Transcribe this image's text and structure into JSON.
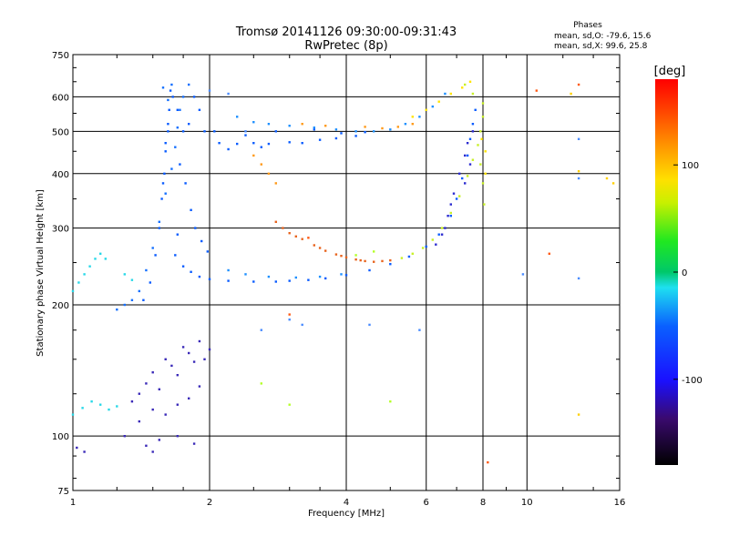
{
  "chart_data": {
    "type": "scatter",
    "title": "Tromsø 20141126 09:30:00-09:31:43",
    "subtitle": "RwPretec (8p)",
    "info": {
      "heading": "Phases",
      "line1": "mean, sd,O: -79.6, 15.6",
      "line2": "mean, sd,X:  99.6, 25.8"
    },
    "xlabel": "Frequency [MHz]",
    "ylabel": "Stationary phase Virtual Height [km]",
    "x_scale": "log",
    "y_scale": "log",
    "xlim": [
      1,
      16
    ],
    "ylim": [
      75,
      750
    ],
    "x_ticks": [
      "1",
      "2",
      "4",
      "6",
      "8",
      "10",
      "16"
    ],
    "x_tick_values": [
      1,
      2,
      4,
      6,
      8,
      10,
      16
    ],
    "y_ticks": [
      "75",
      "100",
      "200",
      "300",
      "400",
      "500",
      "600",
      "750"
    ],
    "y_tick_values": [
      75,
      100,
      200,
      300,
      400,
      500,
      600,
      750
    ],
    "grid": true,
    "colorbar": {
      "label": "[deg]",
      "range": [
        -180,
        180
      ],
      "ticks": [
        "100",
        "0",
        "-100"
      ],
      "tick_values": [
        100,
        0,
        -100
      ]
    },
    "series": [
      {
        "color": "#0a5cff",
        "phase": -90,
        "points": [
          [
            1.43,
            205
          ],
          [
            1.48,
            225
          ],
          [
            1.52,
            260
          ],
          [
            1.55,
            300
          ],
          [
            1.57,
            350
          ],
          [
            1.59,
            400
          ],
          [
            1.6,
            450
          ],
          [
            1.62,
            500
          ],
          [
            1.63,
            560
          ],
          [
            1.64,
            620
          ],
          [
            1.6,
            470
          ],
          [
            1.58,
            380
          ],
          [
            1.62,
            520
          ],
          [
            1.66,
            600
          ],
          [
            1.7,
            560
          ],
          [
            1.75,
            500
          ],
          [
            1.8,
            520
          ],
          [
            1.85,
            600
          ],
          [
            1.9,
            560
          ],
          [
            1.95,
            500
          ],
          [
            1.72,
            420
          ],
          [
            1.77,
            380
          ],
          [
            1.82,
            330
          ],
          [
            1.86,
            300
          ],
          [
            1.92,
            280
          ],
          [
            1.98,
            265
          ],
          [
            1.7,
            290
          ],
          [
            1.68,
            260
          ],
          [
            1.75,
            245
          ],
          [
            1.82,
            238
          ],
          [
            1.9,
            232
          ],
          [
            2.0,
            229
          ],
          [
            2.2,
            227
          ],
          [
            2.5,
            226
          ],
          [
            2.8,
            226
          ],
          [
            3.0,
            227
          ],
          [
            3.3,
            228
          ],
          [
            3.6,
            230
          ],
          [
            4.0,
            234
          ],
          [
            4.5,
            240
          ],
          [
            5.0,
            248
          ],
          [
            5.5,
            258
          ],
          [
            6.0,
            272
          ],
          [
            6.4,
            290
          ],
          [
            6.8,
            320
          ],
          [
            7.0,
            350
          ],
          [
            7.2,
            390
          ],
          [
            7.4,
            440
          ],
          [
            7.5,
            480
          ],
          [
            7.6,
            520
          ],
          [
            7.7,
            560
          ],
          [
            2.1,
            470
          ],
          [
            2.3,
            468
          ],
          [
            2.5,
            470
          ],
          [
            2.7,
            468
          ],
          [
            3.0,
            472
          ],
          [
            3.2,
            470
          ],
          [
            3.5,
            478
          ],
          [
            3.8,
            482
          ],
          [
            4.2,
            488
          ],
          [
            2.05,
            500
          ],
          [
            2.4,
            490
          ],
          [
            2.8,
            500
          ],
          [
            3.4,
            505
          ],
          [
            3.9,
            495
          ],
          [
            4.4,
            498
          ],
          [
            2.2,
            455
          ],
          [
            2.6,
            460
          ]
        ]
      },
      {
        "color": "#1e90ff",
        "phase": -60,
        "points": [
          [
            2.3,
            540
          ],
          [
            2.5,
            525
          ],
          [
            2.7,
            520
          ],
          [
            3.0,
            515
          ],
          [
            3.4,
            510
          ],
          [
            3.8,
            505
          ],
          [
            4.2,
            500
          ],
          [
            4.6,
            500
          ],
          [
            5.0,
            505
          ],
          [
            5.4,
            520
          ],
          [
            5.8,
            540
          ],
          [
            6.2,
            570
          ],
          [
            6.6,
            610
          ],
          [
            2.2,
            240
          ],
          [
            2.4,
            235
          ],
          [
            2.7,
            232
          ],
          [
            3.1,
            231
          ],
          [
            3.5,
            232
          ],
          [
            3.9,
            235
          ]
        ]
      },
      {
        "color": "#2c2cd0",
        "phase": -120,
        "points": [
          [
            6.5,
            290
          ],
          [
            6.7,
            320
          ],
          [
            6.9,
            360
          ],
          [
            7.1,
            400
          ],
          [
            7.3,
            440
          ],
          [
            7.4,
            470
          ],
          [
            7.6,
            500
          ],
          [
            7.5,
            420
          ],
          [
            7.3,
            380
          ],
          [
            6.8,
            340
          ],
          [
            6.6,
            300
          ],
          [
            6.3,
            275
          ]
        ]
      },
      {
        "color": "#e8641e",
        "phase": 130,
        "points": [
          [
            2.8,
            310
          ],
          [
            2.9,
            300
          ],
          [
            3.0,
            292
          ],
          [
            3.2,
            283
          ],
          [
            3.4,
            274
          ],
          [
            3.6,
            266
          ],
          [
            3.8,
            261
          ],
          [
            4.0,
            257
          ],
          [
            4.2,
            254
          ],
          [
            4.4,
            252
          ],
          [
            4.6,
            251
          ],
          [
            4.8,
            252
          ],
          [
            5.0,
            253
          ],
          [
            3.1,
            287
          ],
          [
            3.5,
            270
          ],
          [
            3.9,
            259
          ],
          [
            4.3,
            253
          ]
        ]
      },
      {
        "color": "#ff9a1a",
        "phase": 110,
        "points": [
          [
            2.5,
            440
          ],
          [
            2.6,
            420
          ],
          [
            2.7,
            400
          ],
          [
            2.8,
            380
          ],
          [
            3.2,
            520
          ],
          [
            3.6,
            515
          ],
          [
            4.4,
            512
          ],
          [
            4.8,
            508
          ],
          [
            5.2,
            512
          ],
          [
            5.6,
            520
          ]
        ]
      },
      {
        "color": "#c8f028",
        "phase": 70,
        "points": [
          [
            5.3,
            256
          ],
          [
            5.6,
            262
          ],
          [
            5.9,
            270
          ],
          [
            6.2,
            282
          ],
          [
            6.5,
            300
          ],
          [
            6.8,
            325
          ],
          [
            7.1,
            355
          ],
          [
            7.4,
            395
          ],
          [
            7.6,
            430
          ],
          [
            7.8,
            465
          ],
          [
            7.9,
            500
          ],
          [
            8.0,
            540
          ],
          [
            8.0,
            580
          ],
          [
            7.9,
            420
          ],
          [
            8.0,
            380
          ],
          [
            8.05,
            340
          ],
          [
            7.6,
            610
          ],
          [
            7.3,
            640
          ]
        ]
      },
      {
        "color": "#ffe400",
        "phase": 90,
        "points": [
          [
            5.6,
            540
          ],
          [
            6.0,
            560
          ],
          [
            6.4,
            585
          ],
          [
            6.8,
            610
          ],
          [
            7.2,
            630
          ],
          [
            7.5,
            650
          ],
          [
            8.1,
            450
          ],
          [
            8.1,
            400
          ],
          [
            7.95,
            480
          ]
        ]
      },
      {
        "color": "#28d8e8",
        "phase": -10,
        "points": [
          [
            1.0,
            215
          ],
          [
            1.03,
            225
          ],
          [
            1.06,
            235
          ],
          [
            1.09,
            245
          ],
          [
            1.12,
            255
          ],
          [
            1.15,
            262
          ],
          [
            1.18,
            255
          ],
          [
            1.3,
            235
          ],
          [
            1.35,
            228
          ],
          [
            1.0,
            112
          ],
          [
            1.05,
            116
          ],
          [
            1.1,
            120
          ],
          [
            1.15,
            118
          ],
          [
            1.2,
            115
          ],
          [
            1.25,
            117
          ]
        ]
      },
      {
        "color": "#3a2ab8",
        "phase": -140,
        "points": [
          [
            1.35,
            120
          ],
          [
            1.4,
            125
          ],
          [
            1.45,
            132
          ],
          [
            1.5,
            140
          ],
          [
            1.55,
            128
          ],
          [
            1.6,
            150
          ],
          [
            1.65,
            145
          ],
          [
            1.7,
            138
          ],
          [
            1.75,
            160
          ],
          [
            1.8,
            155
          ],
          [
            1.85,
            148
          ],
          [
            1.9,
            165
          ],
          [
            1.95,
            150
          ],
          [
            2.0,
            158
          ],
          [
            1.5,
            115
          ],
          [
            1.6,
            112
          ],
          [
            1.7,
            118
          ],
          [
            1.8,
            122
          ],
          [
            1.9,
            130
          ],
          [
            1.45,
            95
          ],
          [
            1.5,
            92
          ],
          [
            1.55,
            98
          ],
          [
            1.7,
            100
          ],
          [
            1.85,
            96
          ],
          [
            1.3,
            100
          ],
          [
            1.4,
            108
          ],
          [
            1.02,
            94
          ],
          [
            1.06,
            92
          ]
        ]
      },
      {
        "color": "#1570ff",
        "phase": -75,
        "points": [
          [
            1.25,
            195
          ],
          [
            1.3,
            200
          ],
          [
            1.35,
            205
          ],
          [
            1.4,
            215
          ],
          [
            1.45,
            240
          ],
          [
            1.5,
            270
          ],
          [
            1.55,
            310
          ],
          [
            1.6,
            360
          ],
          [
            1.65,
            410
          ],
          [
            1.68,
            460
          ],
          [
            1.7,
            510
          ],
          [
            1.72,
            560
          ],
          [
            1.75,
            600
          ],
          [
            1.8,
            640
          ],
          [
            1.65,
            640
          ],
          [
            1.58,
            630
          ],
          [
            1.62,
            590
          ]
        ]
      },
      {
        "color": "#ff5a14",
        "phase": 150,
        "points": [
          [
            3.0,
            190
          ],
          [
            3.3,
            285
          ],
          [
            13,
            640
          ],
          [
            10.5,
            620
          ],
          [
            11.2,
            262
          ],
          [
            8.2,
            87
          ]
        ]
      },
      {
        "color": "#4a8cff",
        "phase": -50,
        "points": [
          [
            2.6,
            175
          ],
          [
            3.0,
            185
          ],
          [
            4.5,
            180
          ],
          [
            5.8,
            175
          ],
          [
            9.8,
            235
          ],
          [
            13,
            230
          ],
          [
            13,
            480
          ],
          [
            13,
            390
          ],
          [
            3.2,
            180
          ],
          [
            2.4,
            500
          ],
          [
            2.2,
            610
          ],
          [
            2.0,
            620
          ]
        ]
      },
      {
        "color": "#b4ff28",
        "phase": 60,
        "points": [
          [
            3.0,
            118
          ],
          [
            5.0,
            120
          ],
          [
            2.6,
            132
          ],
          [
            4.2,
            260
          ],
          [
            4.6,
            265
          ]
        ]
      },
      {
        "color": "#ffd000",
        "phase": 95,
        "points": [
          [
            13,
            112
          ],
          [
            13,
            405
          ],
          [
            15,
            390
          ],
          [
            15.5,
            380
          ],
          [
            12.5,
            610
          ]
        ]
      }
    ]
  }
}
